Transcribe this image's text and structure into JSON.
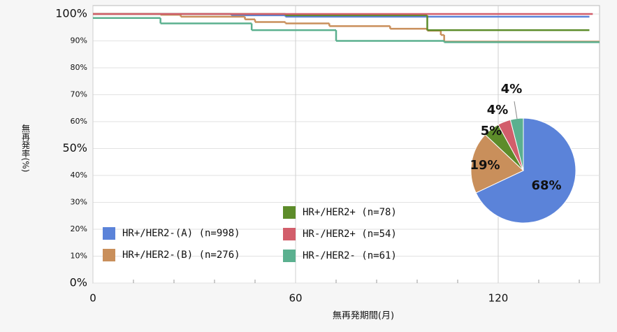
{
  "chart_data": [
    {
      "type": "line",
      "step": "post",
      "x_label": "無再発期間(月)",
      "y_label": "無再発率(%)",
      "xlim": [
        0,
        150
      ],
      "ylim": [
        0,
        100
      ],
      "xticks": [
        0,
        60,
        120
      ],
      "yticks": [
        {
          "value": 0,
          "label": "0%"
        },
        {
          "value": 10,
          "label": "10%"
        },
        {
          "value": 20,
          "label": "20%"
        },
        {
          "value": 30,
          "label": "30%"
        },
        {
          "value": 40,
          "label": "40%"
        },
        {
          "value": 50,
          "label": "50%"
        },
        {
          "value": 60,
          "label": "60%"
        },
        {
          "value": 70,
          "label": "70%"
        },
        {
          "value": 80,
          "label": "80%"
        },
        {
          "value": 90,
          "label": "90%"
        },
        {
          "value": 100,
          "label": "100%"
        }
      ],
      "grid": true,
      "series": [
        {
          "name": "HR+/HER2-(A) (n=998)",
          "color": "#5b83d9",
          "x": [
            0,
            41,
            57,
            147
          ],
          "values": [
            100,
            99.5,
            99,
            99
          ]
        },
        {
          "name": "HR+/HER2-(B) (n=276)",
          "color": "#c98f5b",
          "x": [
            0,
            20,
            26,
            45,
            48,
            57,
            70,
            88,
            99,
            103,
            104,
            150
          ],
          "values": [
            100,
            99.7,
            99,
            98,
            97,
            96.5,
            95.5,
            94.5,
            93.8,
            92.2,
            89.7,
            89.7
          ]
        },
        {
          "name": "HR+/HER2+ (n=78)",
          "color": "#5d8c2a",
          "x": [
            0,
            57,
            99,
            147
          ],
          "values": [
            100,
            99.5,
            94,
            94
          ]
        },
        {
          "name": "HR-/HER2+ (n=54)",
          "color": "#d25e6b",
          "x": [
            0,
            148
          ],
          "values": [
            100,
            100
          ]
        },
        {
          "name": "HR-/HER2- (n=61)",
          "color": "#5bb08f",
          "x": [
            0,
            20,
            47,
            72,
            104,
            150
          ],
          "values": [
            98.5,
            96.5,
            94,
            90,
            89.5,
            89.5
          ]
        }
      ]
    },
    {
      "type": "pie",
      "values": [
        68,
        19,
        5,
        4,
        4
      ],
      "value_labels": [
        "68%",
        "19%",
        "5%",
        "4%",
        "4%"
      ],
      "colors": [
        "#5b83d9",
        "#c98f5b",
        "#5d8c2a",
        "#d25e6b",
        "#5bb08f"
      ]
    }
  ]
}
